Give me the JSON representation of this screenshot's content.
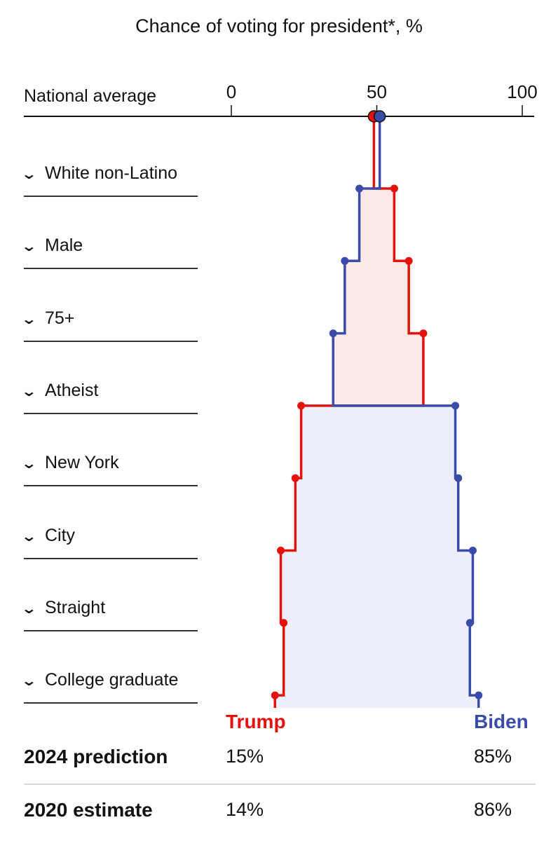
{
  "chart_data": {
    "type": "line",
    "title": "Chance of voting for president*, %",
    "axis": {
      "label": "National average",
      "ticks": [
        0,
        50,
        100
      ],
      "xlim": [
        0,
        100
      ]
    },
    "national_average": {
      "trump": 49,
      "biden": 51
    },
    "steps": [
      {
        "label": "White non-Latino",
        "trump": 56,
        "biden": 44
      },
      {
        "label": "Male",
        "trump": 61,
        "biden": 39
      },
      {
        "label": "75+",
        "trump": 66,
        "biden": 35
      },
      {
        "label": "Atheist",
        "trump": 24,
        "biden": 77
      },
      {
        "label": "New York",
        "trump": 22,
        "biden": 78
      },
      {
        "label": "City",
        "trump": 17,
        "biden": 83
      },
      {
        "label": "Straight",
        "trump": 18,
        "biden": 82
      },
      {
        "label": "College graduate",
        "trump": 15,
        "biden": 85
      }
    ],
    "series": [
      {
        "name": "Trump",
        "color": "#e3120b"
      },
      {
        "name": "Biden",
        "color": "#3b4ba8"
      }
    ]
  },
  "results": {
    "headers": {
      "trump": "Trump",
      "biden": "Biden"
    },
    "rows": [
      {
        "label": "2024 prediction",
        "trump": "15%",
        "biden": "85%"
      },
      {
        "label": "2020 estimate",
        "trump": "14%",
        "biden": "86%"
      }
    ]
  },
  "colors": {
    "trump": "#e3120b",
    "biden": "#3b4ba8",
    "trump_fill": "#fde8e8",
    "biden_fill": "#eceff9"
  }
}
